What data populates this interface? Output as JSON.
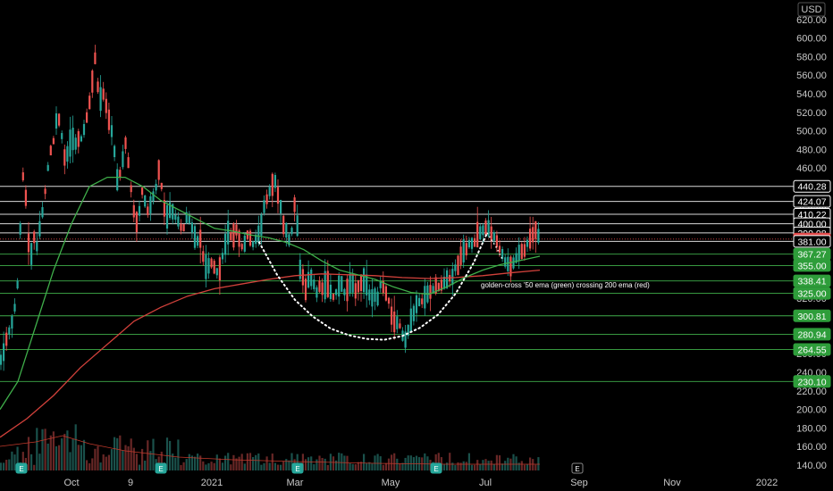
{
  "chart_data": {
    "type": "candlestick",
    "currency": "USD",
    "y_ticks": [
      620,
      600,
      580,
      560,
      540,
      520,
      500,
      480,
      460,
      440,
      420,
      400,
      380,
      360,
      340,
      320,
      300,
      280,
      260,
      240,
      220,
      200,
      180,
      160,
      140
    ],
    "ylim": [
      132,
      630
    ],
    "x_labels": [
      "Oct",
      "9",
      "2021",
      "Mar",
      "May",
      "Jul",
      "Sep",
      "Nov",
      "2022"
    ],
    "annotation": "golden-cross '50 ema (green) crossing 200 ema (red)",
    "earnings_marker": "E",
    "horizontal_levels": [
      {
        "label": "440.28",
        "value": 440.28,
        "style": "white"
      },
      {
        "label": "424.07",
        "value": 424.07,
        "style": "white"
      },
      {
        "label": "410.22",
        "value": 410.22,
        "style": "white"
      },
      {
        "label": "400.00",
        "value": 400.0,
        "style": "white"
      },
      {
        "label": "390.08",
        "value": 390.08,
        "style": "white"
      },
      {
        "label": "383.47",
        "value": 383.47,
        "style": "last"
      },
      {
        "label": "381.00",
        "value": 381.0,
        "style": "white"
      },
      {
        "label": "367.27",
        "value": 367.27,
        "style": "green"
      },
      {
        "label": "355.00",
        "value": 355.0,
        "style": "green"
      },
      {
        "label": "338.41",
        "value": 338.41,
        "style": "green"
      },
      {
        "label": "325.00",
        "value": 325.0,
        "style": "green"
      },
      {
        "label": "300.81",
        "value": 300.81,
        "style": "green"
      },
      {
        "label": "280.94",
        "value": 280.94,
        "style": "green"
      },
      {
        "label": "264.55",
        "value": 264.55,
        "style": "green"
      },
      {
        "label": "230.10",
        "value": 230.1,
        "style": "green"
      }
    ],
    "price_path": [
      [
        0,
        250
      ],
      [
        5,
        265
      ],
      [
        10,
        285
      ],
      [
        15,
        300
      ],
      [
        18,
        320
      ],
      [
        21,
        345
      ],
      [
        23,
        405
      ],
      [
        25,
        455
      ],
      [
        28,
        440
      ],
      [
        31,
        395
      ],
      [
        34,
        355
      ],
      [
        37,
        390
      ],
      [
        41,
        375
      ],
      [
        45,
        395
      ],
      [
        50,
        430
      ],
      [
        55,
        470
      ],
      [
        60,
        490
      ],
      [
        64,
        515
      ],
      [
        68,
        505
      ],
      [
        72,
        470
      ],
      [
        76,
        478
      ],
      [
        80,
        495
      ],
      [
        85,
        488
      ],
      [
        90,
        490
      ],
      [
        94,
        500
      ],
      [
        98,
        520
      ],
      [
        102,
        540
      ],
      [
        106,
        585
      ],
      [
        108,
        560
      ],
      [
        112,
        530
      ],
      [
        116,
        540
      ],
      [
        120,
        520
      ],
      [
        124,
        505
      ],
      [
        128,
        480
      ],
      [
        131,
        445
      ],
      [
        135,
        455
      ],
      [
        140,
        490
      ],
      [
        144,
        465
      ],
      [
        148,
        425
      ],
      [
        152,
        400
      ],
      [
        156,
        415
      ],
      [
        160,
        440
      ],
      [
        164,
        410
      ],
      [
        168,
        420
      ],
      [
        172,
        430
      ],
      [
        176,
        445
      ],
      [
        179,
        470
      ],
      [
        182,
        420
      ],
      [
        186,
        410
      ],
      [
        190,
        415
      ],
      [
        195,
        410
      ],
      [
        200,
        400
      ],
      [
        205,
        395
      ],
      [
        210,
        410
      ],
      [
        215,
        395
      ],
      [
        220,
        380
      ],
      [
        224,
        385
      ],
      [
        228,
        360
      ],
      [
        232,
        350
      ],
      [
        236,
        358
      ],
      [
        240,
        355
      ],
      [
        244,
        345
      ],
      [
        248,
        360
      ],
      [
        252,
        380
      ],
      [
        256,
        390
      ],
      [
        260,
        385
      ],
      [
        264,
        395
      ],
      [
        268,
        380
      ],
      [
        272,
        372
      ],
      [
        276,
        390
      ],
      [
        280,
        385
      ],
      [
        284,
        375
      ],
      [
        288,
        390
      ],
      [
        292,
        395
      ],
      [
        296,
        420
      ],
      [
        300,
        430
      ],
      [
        304,
        440
      ],
      [
        308,
        445
      ],
      [
        312,
        428
      ],
      [
        316,
        410
      ],
      [
        318,
        390
      ],
      [
        321,
        395
      ],
      [
        324,
        380
      ],
      [
        328,
        400
      ],
      [
        331,
        440
      ],
      [
        334,
        360
      ],
      [
        338,
        345
      ],
      [
        342,
        330
      ],
      [
        346,
        340
      ],
      [
        350,
        338
      ],
      [
        354,
        325
      ],
      [
        358,
        335
      ],
      [
        362,
        330
      ],
      [
        366,
        340
      ],
      [
        370,
        328
      ],
      [
        374,
        320
      ],
      [
        378,
        330
      ],
      [
        382,
        335
      ],
      [
        386,
        325
      ],
      [
        390,
        330
      ],
      [
        394,
        336
      ],
      [
        398,
        328
      ],
      [
        402,
        332
      ],
      [
        406,
        340
      ],
      [
        410,
        330
      ],
      [
        414,
        320
      ],
      [
        418,
        325
      ],
      [
        422,
        315
      ],
      [
        426,
        335
      ],
      [
        430,
        330
      ],
      [
        434,
        322
      ],
      [
        438,
        300
      ],
      [
        442,
        290
      ],
      [
        446,
        295
      ],
      [
        450,
        280
      ],
      [
        454,
        278
      ],
      [
        458,
        290
      ],
      [
        462,
        300
      ],
      [
        466,
        310
      ],
      [
        470,
        315
      ],
      [
        474,
        318
      ],
      [
        478,
        322
      ],
      [
        482,
        326
      ],
      [
        486,
        330
      ],
      [
        490,
        332
      ],
      [
        494,
        334
      ],
      [
        498,
        336
      ],
      [
        502,
        340
      ],
      [
        506,
        345
      ],
      [
        510,
        355
      ],
      [
        514,
        360
      ],
      [
        518,
        368
      ],
      [
        522,
        375
      ],
      [
        526,
        380
      ],
      [
        530,
        378
      ],
      [
        534,
        385
      ],
      [
        538,
        390
      ],
      [
        542,
        395
      ],
      [
        546,
        398
      ],
      [
        550,
        390
      ],
      [
        554,
        385
      ],
      [
        558,
        375
      ],
      [
        562,
        368
      ],
      [
        566,
        358
      ],
      [
        570,
        352
      ],
      [
        574,
        356
      ],
      [
        578,
        365
      ],
      [
        582,
        370
      ],
      [
        586,
        368
      ],
      [
        590,
        380
      ],
      [
        594,
        385
      ],
      [
        598,
        395
      ],
      [
        601,
        390
      ],
      [
        604,
        383
      ]
    ],
    "ema50": [
      [
        0,
        200
      ],
      [
        20,
        230
      ],
      [
        40,
        290
      ],
      [
        60,
        350
      ],
      [
        80,
        400
      ],
      [
        100,
        440
      ],
      [
        120,
        450
      ],
      [
        140,
        450
      ],
      [
        160,
        440
      ],
      [
        180,
        425
      ],
      [
        200,
        415
      ],
      [
        220,
        405
      ],
      [
        240,
        395
      ],
      [
        260,
        392
      ],
      [
        280,
        388
      ],
      [
        300,
        385
      ],
      [
        320,
        380
      ],
      [
        340,
        372
      ],
      [
        360,
        360
      ],
      [
        380,
        350
      ],
      [
        400,
        345
      ],
      [
        420,
        340
      ],
      [
        440,
        332
      ],
      [
        460,
        326
      ],
      [
        480,
        324
      ],
      [
        500,
        332
      ],
      [
        520,
        342
      ],
      [
        540,
        350
      ],
      [
        560,
        356
      ],
      [
        580,
        360
      ],
      [
        604,
        365
      ]
    ],
    "ema200": [
      [
        0,
        170
      ],
      [
        30,
        190
      ],
      [
        60,
        215
      ],
      [
        90,
        245
      ],
      [
        120,
        270
      ],
      [
        150,
        295
      ],
      [
        180,
        310
      ],
      [
        210,
        322
      ],
      [
        240,
        330
      ],
      [
        270,
        335
      ],
      [
        300,
        340
      ],
      [
        330,
        344
      ],
      [
        360,
        346
      ],
      [
        390,
        345
      ],
      [
        420,
        344
      ],
      [
        450,
        342
      ],
      [
        480,
        341
      ],
      [
        510,
        342
      ],
      [
        540,
        344
      ],
      [
        570,
        347
      ],
      [
        604,
        350
      ]
    ],
    "cup_path": [
      [
        290,
        380
      ],
      [
        310,
        345
      ],
      [
        330,
        318
      ],
      [
        350,
        300
      ],
      [
        370,
        287
      ],
      [
        390,
        280
      ],
      [
        410,
        276
      ],
      [
        430,
        275
      ],
      [
        450,
        279
      ],
      [
        470,
        288
      ],
      [
        490,
        302
      ],
      [
        510,
        325
      ],
      [
        530,
        358
      ],
      [
        545,
        390
      ]
    ],
    "handle_path": [
      [
        545,
        390
      ],
      [
        555,
        375
      ],
      [
        563,
        360
      ]
    ]
  }
}
